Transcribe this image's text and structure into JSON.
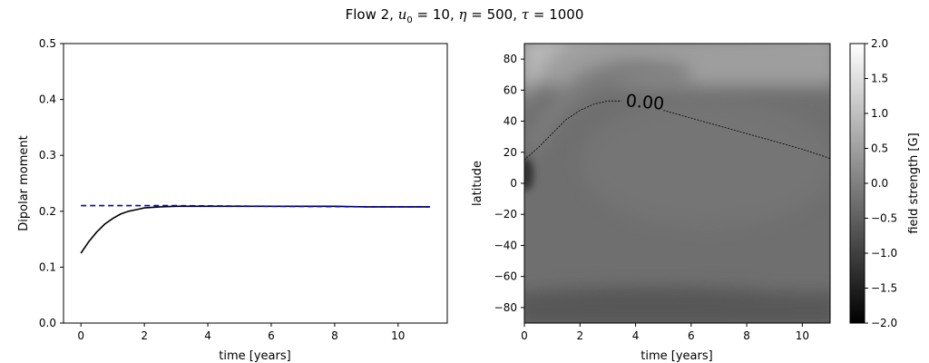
{
  "figure": {
    "title_parts": {
      "prefix": "Flow 2, ",
      "u0_value": "10",
      "eta_value": "500",
      "tau_value": "1000"
    }
  },
  "chart_data": [
    {
      "type": "line",
      "xlabel": "time [years]",
      "ylabel": "Dipolar moment",
      "xlim": [
        -0.55,
        11.55
      ],
      "ylim": [
        0.0,
        0.5
      ],
      "x_ticks": [
        0,
        2,
        4,
        6,
        8,
        10
      ],
      "x_tick_labels": [
        "0",
        "2",
        "4",
        "6",
        "8",
        "10"
      ],
      "y_ticks": [
        0.0,
        0.1,
        0.2,
        0.3,
        0.4,
        0.5
      ],
      "y_tick_labels": [
        "0.0",
        "0.1",
        "0.2",
        "0.3",
        "0.4",
        "0.5"
      ],
      "grid": false,
      "series": [
        {
          "color": "#000000",
          "style": "solid",
          "x": [
            0,
            0.25,
            0.5,
            0.75,
            1.0,
            1.25,
            1.5,
            1.75,
            2.0,
            2.5,
            3,
            4,
            5,
            6,
            7,
            8,
            9,
            10,
            11
          ],
          "y": [
            0.125,
            0.146,
            0.163,
            0.177,
            0.187,
            0.195,
            0.2,
            0.203,
            0.206,
            0.208,
            0.209,
            0.209,
            0.209,
            0.209,
            0.209,
            0.209,
            0.208,
            0.208,
            0.208
          ]
        },
        {
          "color": "#0000cc",
          "style": "dashed",
          "x": [
            0,
            3,
            6,
            9,
            11
          ],
          "y": [
            0.21,
            0.21,
            0.209,
            0.208,
            0.208
          ]
        }
      ]
    },
    {
      "type": "heatmap",
      "xlabel": "time [years]",
      "ylabel": "latitude",
      "xlim": [
        0,
        11
      ],
      "ylim": [
        -90,
        90
      ],
      "x_ticks": [
        0,
        2,
        4,
        6,
        8,
        10
      ],
      "x_tick_labels": [
        "0",
        "2",
        "4",
        "6",
        "8",
        "10"
      ],
      "y_ticks": [
        -80,
        -60,
        -40,
        -20,
        0,
        20,
        40,
        60,
        80
      ],
      "y_tick_labels": [
        "−80",
        "−60",
        "−40",
        "−20",
        "0",
        "20",
        "40",
        "60",
        "80"
      ],
      "colormap": "gray",
      "colorbar": {
        "label": "field strength [G]",
        "range": [
          -2.0,
          2.0
        ],
        "ticks": [
          -2.0,
          -1.5,
          -1.0,
          -0.5,
          0.0,
          0.5,
          1.0,
          1.5,
          2.0
        ],
        "tick_labels": [
          "−2.0",
          "−1.5",
          "−1.0",
          "−0.5",
          "0.0",
          "0.5",
          "1.0",
          "1.5",
          "2.0"
        ]
      },
      "contour": {
        "level_label": "0.00",
        "x": [
          0,
          0.5,
          1,
          1.5,
          2,
          2.5,
          3,
          3.5,
          4,
          5,
          6,
          7,
          8,
          9,
          10,
          11
        ],
        "y": [
          15,
          23,
          32,
          41,
          47,
          51,
          53,
          53,
          52,
          47,
          42,
          37,
          32,
          27,
          22,
          16
        ]
      },
      "field": {
        "description_values": "approximate field strength at sample points (time, latitude) -> G",
        "background": -0.45,
        "north_band": {
          "lat_min": 62,
          "lat_max": 90,
          "value": 0.45
        },
        "bright_ridge_peak": 0.95,
        "south_band": {
          "lat_min": -90,
          "lat_max": -68,
          "value": -0.85
        },
        "dark_spot_at_equator_t0": -1.6
      }
    }
  ]
}
